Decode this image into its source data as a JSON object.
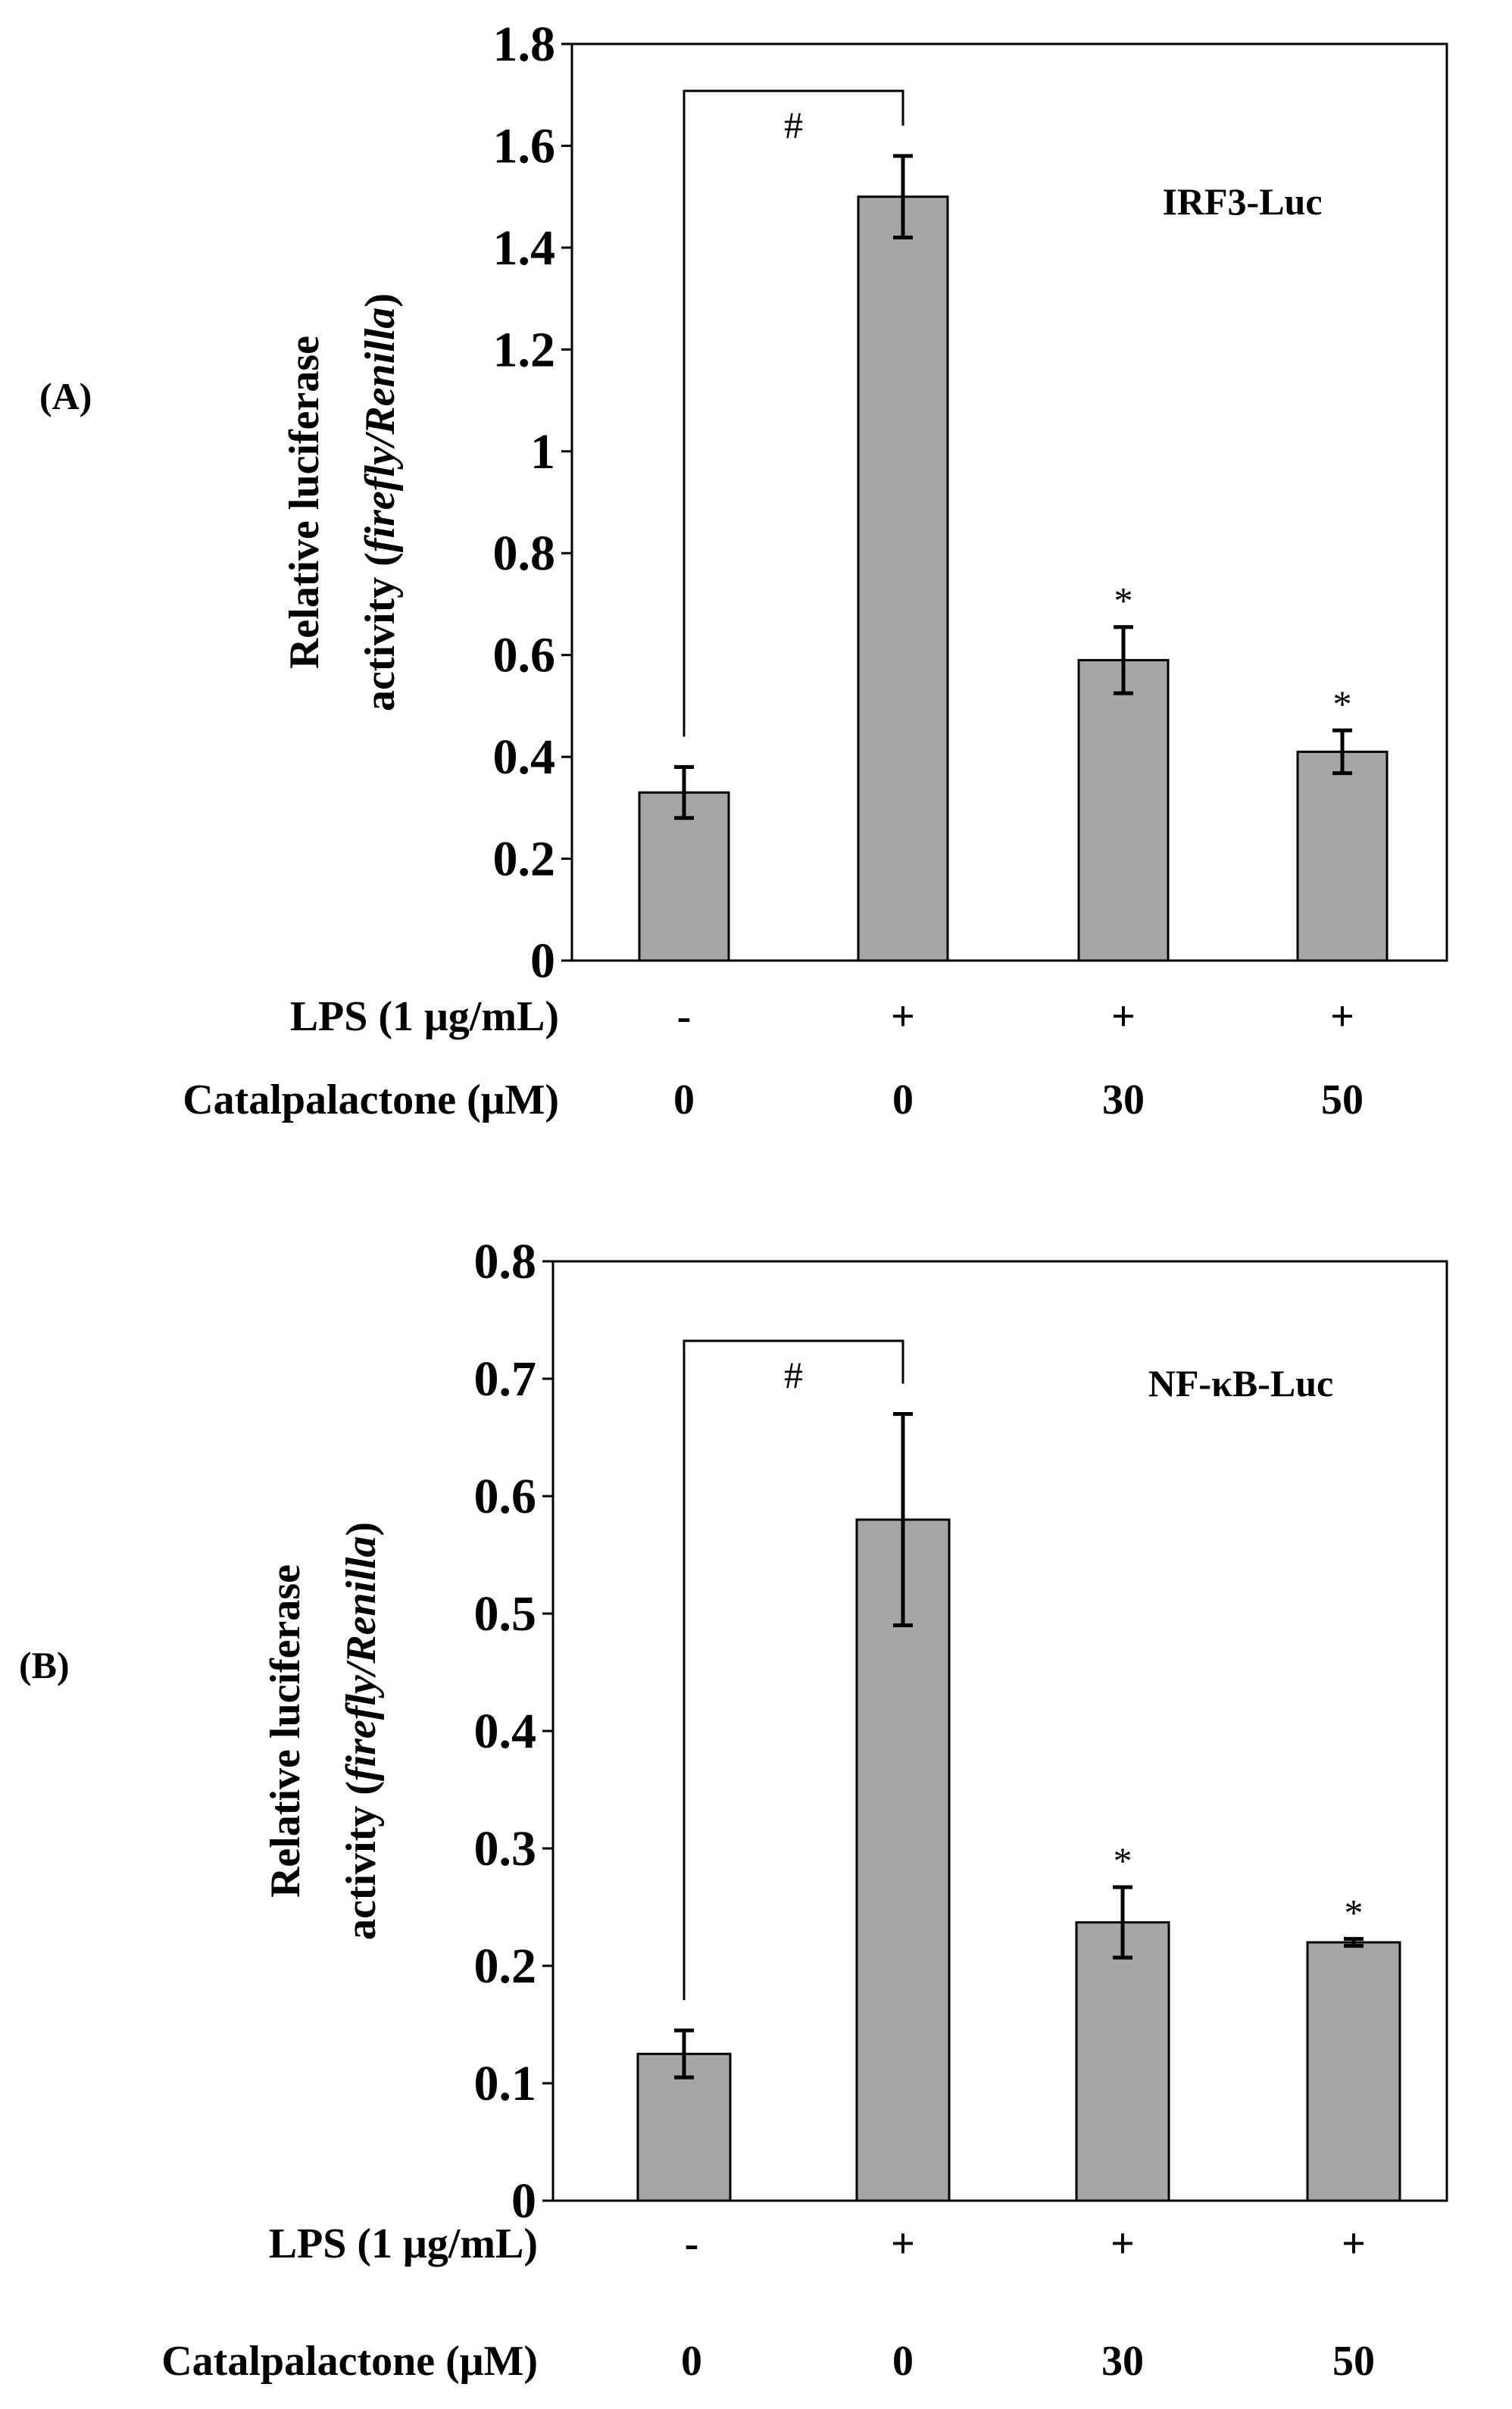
{
  "chart_data": [
    {
      "type": "bar",
      "panel_label": "(A)",
      "annotation": "IRF3-Luc",
      "ylabel_line1": "Relative luciferase",
      "ylabel_line2_prefix": "activity (",
      "ylabel_line2_italic": "firefly/Renilla",
      "ylabel_line2_suffix": ")",
      "ylim": [
        0,
        1.8
      ],
      "ytick_values": [
        0,
        0.2,
        0.4,
        0.6,
        0.8,
        1.0,
        1.2,
        1.4,
        1.6,
        1.8
      ],
      "ytick_labels": [
        "0",
        "0.2",
        "0.4",
        "0.6",
        "0.8",
        "1",
        "1.2",
        "1.4",
        "1.6",
        "1.8"
      ],
      "categories": [
        "-",
        "+",
        "+",
        "+"
      ],
      "values": [
        0.33,
        1.5,
        0.59,
        0.41
      ],
      "errors": [
        0.05,
        0.08,
        0.065,
        0.042
      ],
      "significance": [
        "",
        "",
        "*",
        "*"
      ],
      "bracket": {
        "from": 0,
        "to": 1,
        "label": "#"
      },
      "conditions": [
        {
          "label": "LPS (1 μg/mL)",
          "values": [
            "-",
            "+",
            "+",
            "+"
          ]
        },
        {
          "label": "Catalpalactone (μM)",
          "values": [
            "0",
            "0",
            "30",
            "50"
          ]
        }
      ]
    },
    {
      "type": "bar",
      "panel_label": "(B)",
      "annotation": "NF-κB-Luc",
      "ylabel_line1": "Relative luciferase",
      "ylabel_line2_prefix": "activity (",
      "ylabel_line2_italic": "firefly/Renilla",
      "ylabel_line2_suffix": ")",
      "ylim": [
        0,
        0.8
      ],
      "ytick_values": [
        0,
        0.1,
        0.2,
        0.3,
        0.4,
        0.5,
        0.6,
        0.7,
        0.8
      ],
      "ytick_labels": [
        "0",
        "0.1",
        "0.2",
        "0.3",
        "0.4",
        "0.5",
        "0.6",
        "0.7",
        "0.8"
      ],
      "categories": [
        "-",
        "+",
        "+",
        "+"
      ],
      "values": [
        0.125,
        0.58,
        0.237,
        0.22
      ],
      "errors": [
        0.02,
        0.09,
        0.03,
        0.003
      ],
      "significance": [
        "",
        "",
        "*",
        "*"
      ],
      "bracket": {
        "from": 0,
        "to": 1,
        "label": "#"
      },
      "conditions": [
        {
          "label": "LPS (1 μg/mL)",
          "values": [
            "-",
            "+",
            "+",
            "+"
          ]
        },
        {
          "label": "Catalpalactone (μM)",
          "values": [
            "0",
            "0",
            "30",
            "50"
          ]
        }
      ]
    }
  ]
}
